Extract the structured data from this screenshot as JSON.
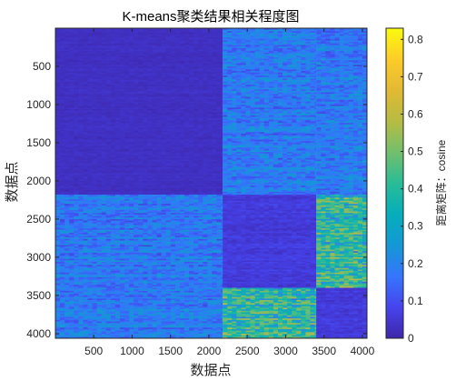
{
  "chart_data": {
    "type": "heatmap",
    "title": "K-means聚类结果相关程度图",
    "xlabel": "数据点",
    "ylabel": "数据点",
    "xlim": [
      1,
      4060
    ],
    "ylim": [
      1,
      4060
    ],
    "y_reversed": true,
    "xticks": [
      500,
      1000,
      1500,
      2000,
      2500,
      3000,
      3500,
      4000
    ],
    "xtick_labels": [
      "500",
      "1000",
      "1500",
      "2000",
      "2500",
      "3000",
      "3500",
      "4000"
    ],
    "yticks": [
      500,
      1000,
      1500,
      2000,
      2500,
      3000,
      3500,
      4000
    ],
    "ytick_labels": [
      "500",
      "1000",
      "1500",
      "2000",
      "2500",
      "3000",
      "3500",
      "4000"
    ],
    "cluster_boundaries": [
      2180,
      3400
    ],
    "cluster_ranges": [
      [
        1,
        2180
      ],
      [
        2180,
        3400
      ],
      [
        3400,
        4060
      ]
    ],
    "mean_distance_matrix": [
      [
        0.03,
        0.18,
        0.18
      ],
      [
        0.18,
        0.06,
        0.4
      ],
      [
        0.18,
        0.4,
        0.06
      ]
    ],
    "colorbar": {
      "label": "距离矩阵：cosine",
      "colormap": "parula",
      "range": [
        0,
        0.83
      ],
      "ticks": [
        0,
        0.1,
        0.2,
        0.3,
        0.4,
        0.5,
        0.6,
        0.7,
        0.8
      ],
      "tick_labels": [
        "0",
        "0.1",
        "0.2",
        "0.3",
        "0.4",
        "0.5",
        "0.6",
        "0.7",
        "0.8"
      ]
    },
    "grid": false
  },
  "colors": {
    "axis": "#262626",
    "background": "#ffffff"
  }
}
